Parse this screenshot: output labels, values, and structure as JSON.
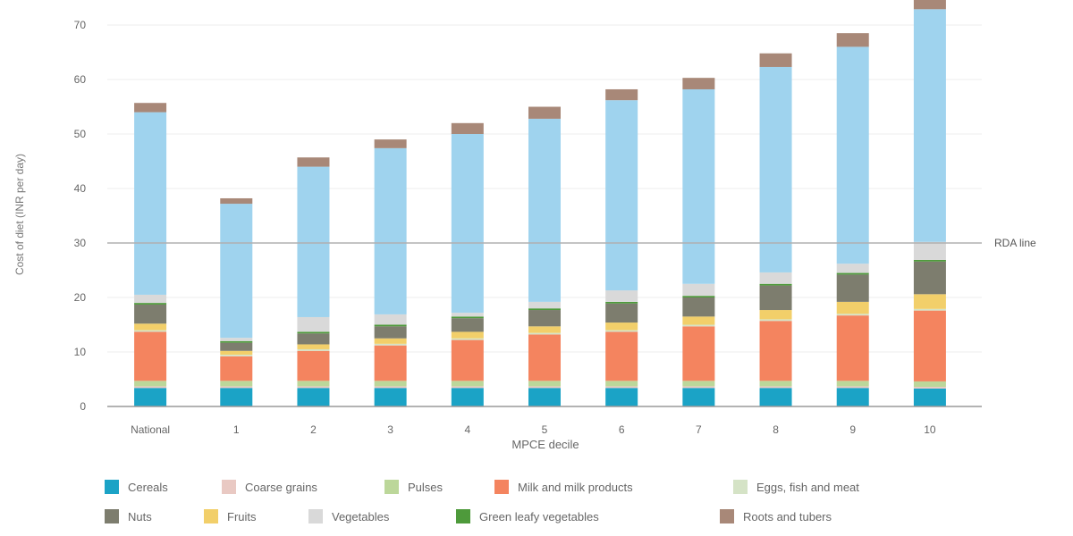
{
  "chart_data": {
    "type": "bar",
    "stacked": true,
    "title": "",
    "xlabel": "MPCE decile",
    "ylabel": "Cost of diet (INR per day)",
    "ylim": [
      0,
      75
    ],
    "yticks": [
      0,
      10,
      20,
      30,
      40,
      50,
      60,
      70
    ],
    "grid": true,
    "legend_position": "bottom",
    "categories": [
      "National",
      "1",
      "2",
      "3",
      "4",
      "5",
      "6",
      "7",
      "8",
      "9",
      "10"
    ],
    "reference_line": {
      "label": "RDA line",
      "value": 30,
      "color": "#b0b0b0"
    },
    "series": [
      {
        "name": "Cereals",
        "color": "#1ba3c6",
        "values": [
          3.4,
          3.4,
          3.4,
          3.4,
          3.4,
          3.4,
          3.4,
          3.4,
          3.4,
          3.4,
          3.3
        ]
      },
      {
        "name": "Coarse grains",
        "color": "#e9c9c3",
        "values": [
          0.3,
          0.3,
          0.3,
          0.3,
          0.3,
          0.3,
          0.3,
          0.3,
          0.3,
          0.3,
          0.3
        ]
      },
      {
        "name": "Pulses",
        "color": "#bcd79a",
        "values": [
          1.0,
          1.0,
          1.0,
          1.0,
          1.0,
          1.0,
          1.0,
          1.0,
          1.0,
          1.0,
          1.0
        ]
      },
      {
        "name": "Milk and milk products",
        "color": "#f4845f",
        "values": [
          9.0,
          4.5,
          5.5,
          6.5,
          7.5,
          8.5,
          9.0,
          10.0,
          11.0,
          12.0,
          13.0
        ]
      },
      {
        "name": "Eggs, fish and meat",
        "color": "#d5e3c6",
        "values": [
          0.3,
          0.3,
          0.3,
          0.3,
          0.3,
          0.3,
          0.3,
          0.3,
          0.3,
          0.3,
          0.3
        ]
      },
      {
        "name": "Fruits",
        "color": "#f2cf6a",
        "values": [
          1.2,
          0.7,
          0.9,
          1.0,
          1.2,
          1.2,
          1.4,
          1.5,
          1.7,
          2.2,
          2.7
        ]
      },
      {
        "name": "Nuts",
        "color": "#7d7d6e",
        "values": [
          3.5,
          1.5,
          2.0,
          2.2,
          2.5,
          3.0,
          3.5,
          3.5,
          4.5,
          5.0,
          6.0
        ]
      },
      {
        "name": "Green leafy vegetables",
        "color": "#4e9a3b",
        "values": [
          0.3,
          0.3,
          0.3,
          0.3,
          0.3,
          0.3,
          0.3,
          0.3,
          0.3,
          0.3,
          0.3
        ]
      },
      {
        "name": "Vegetables",
        "color": "#d9d9d9",
        "values": [
          1.5,
          0.6,
          2.7,
          1.9,
          0.7,
          1.2,
          2.1,
          2.2,
          2.1,
          1.7,
          3.3
        ]
      },
      {
        "name": "",
        "color": "#9fd3ee",
        "values": [
          33.5,
          24.6,
          27.6,
          30.5,
          32.8,
          33.6,
          34.9,
          35.7,
          37.7,
          39.8,
          42.7
        ]
      },
      {
        "name": "Roots and tubers",
        "color": "#a88878",
        "values": [
          1.7,
          1.0,
          1.7,
          1.6,
          2.0,
          2.2,
          2.0,
          2.1,
          2.5,
          2.5,
          2.0
        ]
      }
    ]
  }
}
